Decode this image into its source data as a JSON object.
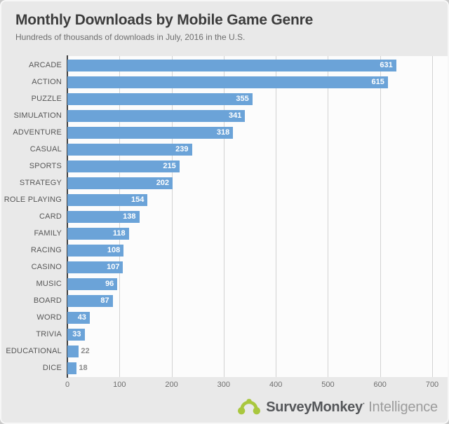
{
  "header": {
    "title": "Monthly Downloads by Mobile Game Genre",
    "subtitle": "Hundreds of thousands of downloads in July, 2016 in the U.S."
  },
  "chart_data": {
    "type": "bar",
    "orientation": "horizontal",
    "title": "Monthly Downloads by Mobile Game Genre",
    "subtitle": "Hundreds of thousands of downloads in July, 2016 in the U.S.",
    "xlabel": "",
    "ylabel": "",
    "categories": [
      "ARCADE",
      "ACTION",
      "PUZZLE",
      "SIMULATION",
      "ADVENTURE",
      "CASUAL",
      "SPORTS",
      "STRATEGY",
      "ROLE PLAYING",
      "CARD",
      "FAMILY",
      "RACING",
      "CASINO",
      "MUSIC",
      "BOARD",
      "WORD",
      "TRIVIA",
      "EDUCATIONAL",
      "DICE"
    ],
    "values": [
      631,
      615,
      355,
      341,
      318,
      239,
      215,
      202,
      154,
      138,
      118,
      108,
      107,
      96,
      87,
      43,
      33,
      22,
      18
    ],
    "xlim": [
      0,
      700
    ],
    "xticks": [
      0,
      100,
      200,
      300,
      400,
      500,
      600,
      700
    ],
    "grid": true,
    "legend": "none",
    "bar_color": "#6ba3d8",
    "value_label_inside_color": "#ffffff",
    "value_label_outside_color": "#8a8a8a",
    "inside_label_min_value": 30
  },
  "footer": {
    "brand": "SurveyMonkey",
    "brand_mark": "·",
    "brand_suffix": "Intelligence",
    "logo_color": "#a9c73e"
  }
}
